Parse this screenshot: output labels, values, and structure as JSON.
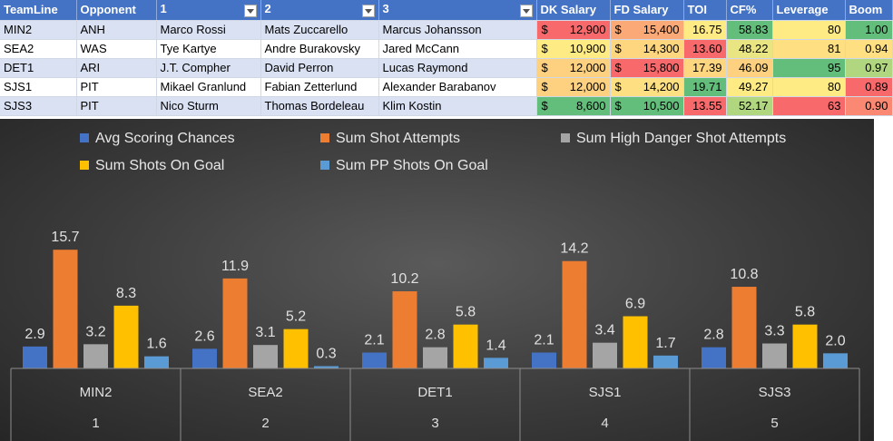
{
  "table": {
    "headers": [
      "TeamLine",
      "Opponent",
      "1",
      "2",
      "3",
      "DK Salary",
      "FD Salary",
      "TOI",
      "CF%",
      "Leverage",
      "Boom"
    ],
    "currency_symbol": "$",
    "rows": [
      {
        "teamline": "MIN2",
        "opponent": "ANH",
        "p1": "Marco Rossi",
        "p2": "Mats Zuccarello",
        "p3": "Marcus Johansson",
        "dk": "12,900",
        "fd": "15,400",
        "toi": "16.75",
        "cf": "58.83",
        "leverage": "80",
        "boom": "1.00"
      },
      {
        "teamline": "SEA2",
        "opponent": "WAS",
        "p1": "Tye Kartye",
        "p2": "Andre Burakovsky",
        "p3": "Jared McCann",
        "dk": "10,900",
        "fd": "14,300",
        "toi": "13.60",
        "cf": "48.22",
        "leverage": "81",
        "boom": "0.94"
      },
      {
        "teamline": "DET1",
        "opponent": "ARI",
        "p1": "J.T. Compher",
        "p2": "David Perron",
        "p3": "Lucas Raymond",
        "dk": "12,000",
        "fd": "15,800",
        "toi": "17.39",
        "cf": "46.09",
        "leverage": "95",
        "boom": "0.97"
      },
      {
        "teamline": "SJS1",
        "opponent": "PIT",
        "p1": "Mikael Granlund",
        "p2": "Fabian Zetterlund",
        "p3": "Alexander Barabanov",
        "dk": "12,000",
        "fd": "14,200",
        "toi": "19.71",
        "cf": "49.27",
        "leverage": "80",
        "boom": "0.89"
      },
      {
        "teamline": "SJS3",
        "opponent": "PIT",
        "p1": "Nico Sturm",
        "p2": "Thomas Bordeleau",
        "p3": "Klim Kostin",
        "dk": "8,600",
        "fd": "10,500",
        "toi": "13.55",
        "cf": "52.17",
        "leverage": "63",
        "boom": "0.90"
      }
    ],
    "cell_colors": {
      "dk": [
        "#f8696b",
        "#ffeb84",
        "#fdd17f",
        "#fdd17f",
        "#63be7b"
      ],
      "fd": [
        "#fbaa77",
        "#fed680",
        "#f8696b",
        "#fee082",
        "#63be7b"
      ],
      "toi": [
        "#ffeb84",
        "#f8696b",
        "#fed680",
        "#63be7b",
        "#f8696b"
      ],
      "cf": [
        "#63be7b",
        "#e9e583",
        "#fdd17f",
        "#ffeb84",
        "#b0d67f"
      ],
      "leverage": [
        "#ffeb84",
        "#fee082",
        "#63be7b",
        "#ffeb84",
        "#f8696b"
      ],
      "boom": [
        "#63be7b",
        "#fee082",
        "#b0d67f",
        "#f8696b",
        "#fa8872"
      ]
    }
  },
  "chart_data": {
    "type": "bar",
    "categories": [
      "MIN2",
      "SEA2",
      "DET1",
      "SJS1",
      "SJS3"
    ],
    "category_index": [
      "1",
      "2",
      "3",
      "4",
      "5"
    ],
    "series": [
      {
        "name": "Avg Scoring Chances",
        "color": "#4472c4",
        "values": [
          2.9,
          2.6,
          2.1,
          2.1,
          2.8
        ]
      },
      {
        "name": "Sum Shot Attempts",
        "color": "#ed7d31",
        "values": [
          15.7,
          11.9,
          10.2,
          14.2,
          10.8
        ]
      },
      {
        "name": "Sum High Danger Shot Attempts",
        "color": "#a5a5a5",
        "values": [
          3.2,
          3.1,
          2.8,
          3.4,
          3.3
        ]
      },
      {
        "name": "Sum Shots On Goal",
        "color": "#ffc000",
        "values": [
          8.3,
          5.2,
          5.8,
          6.9,
          5.8
        ]
      },
      {
        "name": "Sum PP Shots On Goal",
        "color": "#5b9bd5",
        "values": [
          1.6,
          0.3,
          1.4,
          1.7,
          2.0
        ]
      }
    ],
    "legend_position": "top",
    "grid": false,
    "data_labels": true
  }
}
